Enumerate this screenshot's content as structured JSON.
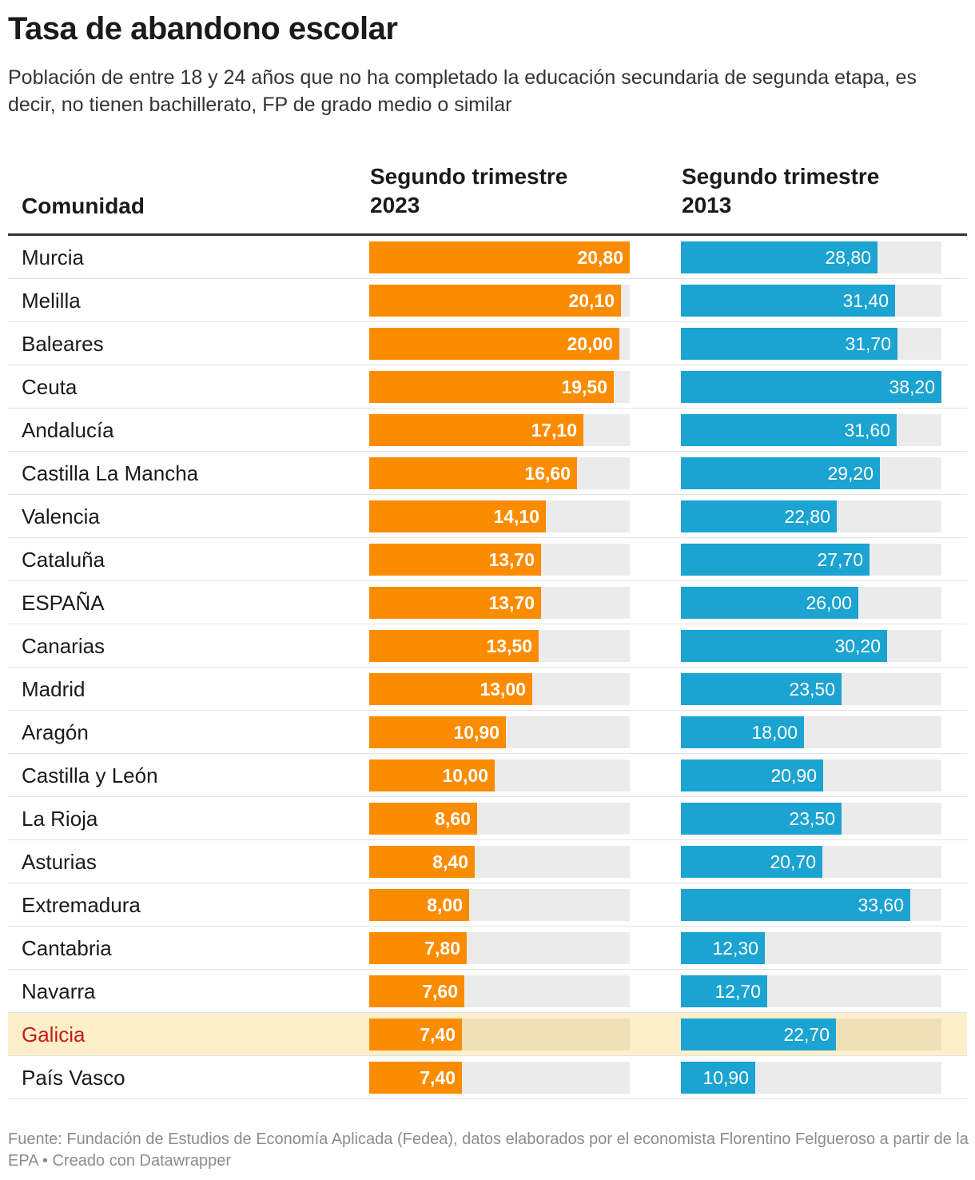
{
  "title": "Tasa de abandono escolar",
  "subtitle": "Población de entre 18 y 24 años que no ha completado la educación secundaria de segunda etapa, es decir, no tienen bachillerato, FP de grado medio o similar",
  "columns": {
    "name": "Comunidad",
    "series1": "Segundo trimestre 2023",
    "series2": "Segundo trimestre 2013"
  },
  "footer": "Fuente: Fundación de Estudios de Economía Aplicada (Fedea), datos elaborados por el economista Florentino Felgueroso a partir de la EPA • Creado con Datawrapper",
  "colors": {
    "series1": "#fb8c00",
    "series2": "#1ba3d1",
    "highlight_row": "#fdefc9",
    "highlight_text": "#c81a1a"
  },
  "chart_data": {
    "type": "bar",
    "title": "Tasa de abandono escolar",
    "xlabel": "",
    "ylabel": "",
    "xlim": [
      0,
      38.2
    ],
    "categories": [
      "Murcia",
      "Melilla",
      "Baleares",
      "Ceuta",
      "Andalucía",
      "Castilla La Mancha",
      "Valencia",
      "Cataluña",
      "ESPAÑA",
      "Canarias",
      "Madrid",
      "Aragón",
      "Castilla y León",
      "La Rioja",
      "Asturias",
      "Extremadura",
      "Cantabria",
      "Navarra",
      "Galicia",
      "País Vasco"
    ],
    "series": [
      {
        "name": "Segundo trimestre 2023",
        "values": [
          20.8,
          20.1,
          20.0,
          19.5,
          17.1,
          16.6,
          14.1,
          13.7,
          13.7,
          13.5,
          13.0,
          10.9,
          10.0,
          8.6,
          8.4,
          8.0,
          7.8,
          7.6,
          7.4,
          7.4
        ],
        "labels": [
          "20,80",
          "20,10",
          "20,00",
          "19,50",
          "17,10",
          "16,60",
          "14,10",
          "13,70",
          "13,70",
          "13,50",
          "13,00",
          "10,90",
          "10,00",
          "8,60",
          "8,40",
          "8,00",
          "7,80",
          "7,60",
          "7,40",
          "7,40"
        ],
        "max": 20.8
      },
      {
        "name": "Segundo trimestre 2013",
        "values": [
          28.8,
          31.4,
          31.7,
          38.2,
          31.6,
          29.2,
          22.8,
          27.7,
          26.0,
          30.2,
          23.5,
          18.0,
          20.9,
          23.5,
          20.7,
          33.6,
          12.3,
          12.7,
          22.7,
          10.9
        ],
        "labels": [
          "28,80",
          "31,40",
          "31,70",
          "38,20",
          "31,60",
          "29,20",
          "22,80",
          "27,70",
          "26,00",
          "30,20",
          "23,50",
          "18,00",
          "20,90",
          "23,50",
          "20,70",
          "33,60",
          "12,30",
          "12,70",
          "22,70",
          "10,90"
        ],
        "max": 38.2
      }
    ],
    "highlight": "Galicia"
  }
}
